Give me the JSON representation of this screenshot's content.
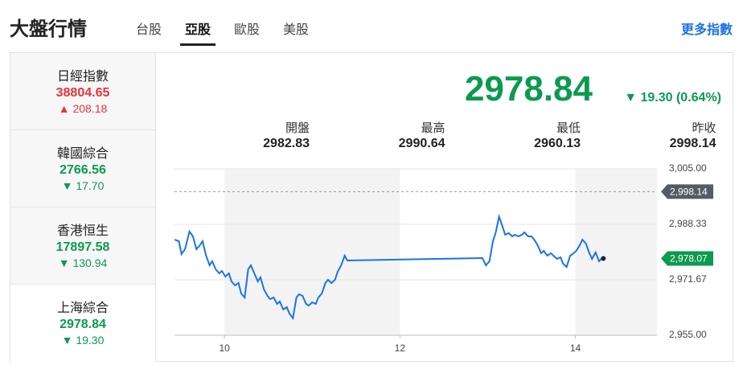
{
  "header": {
    "title": "大盤行情",
    "tabs": [
      "台股",
      "亞股",
      "歐股",
      "美股"
    ],
    "active_tab": 1,
    "more_link": "更多指數"
  },
  "indices": [
    {
      "name": "日經指數",
      "price": "38804.65",
      "arrow": "▲",
      "change": "208.18",
      "color": "#e8333c"
    },
    {
      "name": "韓國綜合",
      "price": "2766.56",
      "arrow": "▼",
      "change": "17.70",
      "color": "#0c9a50"
    },
    {
      "name": "香港恒生",
      "price": "17897.58",
      "arrow": "▼",
      "change": "130.94",
      "color": "#0c9a50"
    },
    {
      "name": "上海綜合",
      "price": "2978.84",
      "arrow": "▼",
      "change": "19.30",
      "color": "#0c9a50"
    }
  ],
  "selected_index": 3,
  "quote": {
    "price": "2978.84",
    "arrow": "▼",
    "change": "19.30 (0.64%)",
    "color": "#0c9a50",
    "stats": [
      {
        "label": "開盤",
        "value": "2982.83"
      },
      {
        "label": "最高",
        "value": "2990.64"
      },
      {
        "label": "最低",
        "value": "2960.13"
      },
      {
        "label": "昨收",
        "value": "2998.14"
      }
    ]
  },
  "chart_data": {
    "type": "line",
    "x": [
      9.43,
      9.48,
      9.51,
      9.55,
      9.6,
      9.64,
      9.68,
      9.72,
      9.75,
      9.79,
      9.83,
      9.86,
      9.9,
      9.94,
      9.97,
      10.01,
      10.05,
      10.08,
      10.12,
      10.16,
      10.19,
      10.23,
      10.27,
      10.3,
      10.34,
      10.38,
      10.41,
      10.45,
      10.49,
      10.52,
      10.56,
      10.6,
      10.63,
      10.67,
      10.71,
      10.74,
      10.78,
      10.82,
      10.85,
      10.89,
      10.93,
      10.96,
      11.0,
      11.04,
      11.07,
      11.11,
      11.15,
      11.18,
      11.22,
      11.26,
      11.29,
      11.33,
      11.37,
      11.4,
      12.94,
      12.98,
      13.02,
      13.06,
      13.09,
      13.13,
      13.17,
      13.2,
      13.24,
      13.28,
      13.31,
      13.35,
      13.39,
      13.42,
      13.46,
      13.5,
      13.53,
      13.57,
      13.61,
      13.64,
      13.68,
      13.72,
      13.75,
      13.79,
      13.83,
      13.86,
      13.9,
      13.94,
      13.97,
      14.01,
      14.05,
      14.08,
      14.12,
      14.16,
      14.19,
      14.23,
      14.27,
      14.3
    ],
    "series": [
      {
        "color": "#1a73e8",
        "values": [
          2983.74,
          2983.26,
          2979.4,
          2980.85,
          2986.16,
          2984.71,
          2980.85,
          2982.05,
          2983.26,
          2978.91,
          2976.01,
          2977.22,
          2974.81,
          2973.6,
          2974.32,
          2972.63,
          2973.6,
          2971.18,
          2969.98,
          2970.7,
          2967.56,
          2966.35,
          2974.81,
          2976.01,
          2973.6,
          2971.18,
          2972.39,
          2968.77,
          2966.84,
          2965.87,
          2966.35,
          2964.42,
          2965.15,
          2962.73,
          2963.45,
          2961.52,
          2960.13,
          2966.35,
          2967.32,
          2966.84,
          2964.42,
          2963.94,
          2964.9,
          2964.42,
          2966.35,
          2967.56,
          2970.7,
          2971.67,
          2970.7,
          2971.67,
          2974.08,
          2976.01,
          2978.91,
          2977.46,
          2978.19,
          2976.01,
          2977.22,
          2983.26,
          2985.68,
          2990.64,
          2987.61,
          2985.19,
          2985.68,
          2984.71,
          2985.19,
          2984.71,
          2985.19,
          2985.92,
          2984.71,
          2984.71,
          2983.74,
          2982.05,
          2979.64,
          2980.36,
          2978.91,
          2979.64,
          2978.91,
          2977.95,
          2978.43,
          2976.5,
          2975.53,
          2978.91,
          2979.4,
          2980.36,
          2982.05,
          2983.74,
          2982.54,
          2979.64,
          2977.95,
          2979.88,
          2977.22,
          2978.07
        ]
      }
    ],
    "xlim": [
      9.43,
      14.93
    ],
    "xticks": [
      10,
      12,
      14
    ],
    "ylim": [
      2955,
      3005
    ],
    "yticks": [
      {
        "value": 2955,
        "label": "2,955.00"
      },
      {
        "value": 2971.67,
        "label": "2,971.67"
      },
      {
        "value": 2988.33,
        "label": "2,988.33"
      },
      {
        "value": 3005,
        "label": "3,005.00"
      }
    ],
    "grid": true,
    "reference_line": {
      "value": 2998.14,
      "label": "2,998.14",
      "color": "#555b61"
    },
    "last_marker": {
      "value": 2978.07,
      "label": "2,978.07",
      "color": "#0c9a50"
    }
  }
}
